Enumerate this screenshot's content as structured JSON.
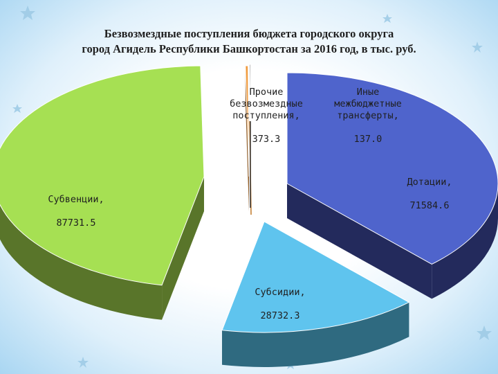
{
  "chart_data": {
    "type": "pie",
    "title_line1": "Безвозмездные поступления бюджета городского округа",
    "title_line2": "город Агидель Республики Башкортостан за 2016 год, в тыс. руб.",
    "slices": [
      {
        "label": "Дотации,",
        "value": 71584.6,
        "value_text": "71584.6",
        "color": "#4f64cc",
        "side": "#232a5c"
      },
      {
        "label": "Субсидии,",
        "value": 28732.3,
        "value_text": "28732.3",
        "color": "#5fc4ee",
        "side": "#2f6a80"
      },
      {
        "label": "Субвенции,",
        "value": 87731.5,
        "value_text": "87731.5",
        "color": "#a6e053",
        "side": "#59752a"
      },
      {
        "label": "Прочие\nбезвозмездные\nпоступления,",
        "value": 373.3,
        "value_text": "373.3",
        "color": "#f09a3c",
        "side": "#8a5620"
      },
      {
        "label": "Иные\nмежбюджетные\nтрансферты,",
        "value": 137.0,
        "value_text": "137.0",
        "color": "#4a4a4a",
        "side": "#2a2a2a"
      }
    ]
  }
}
